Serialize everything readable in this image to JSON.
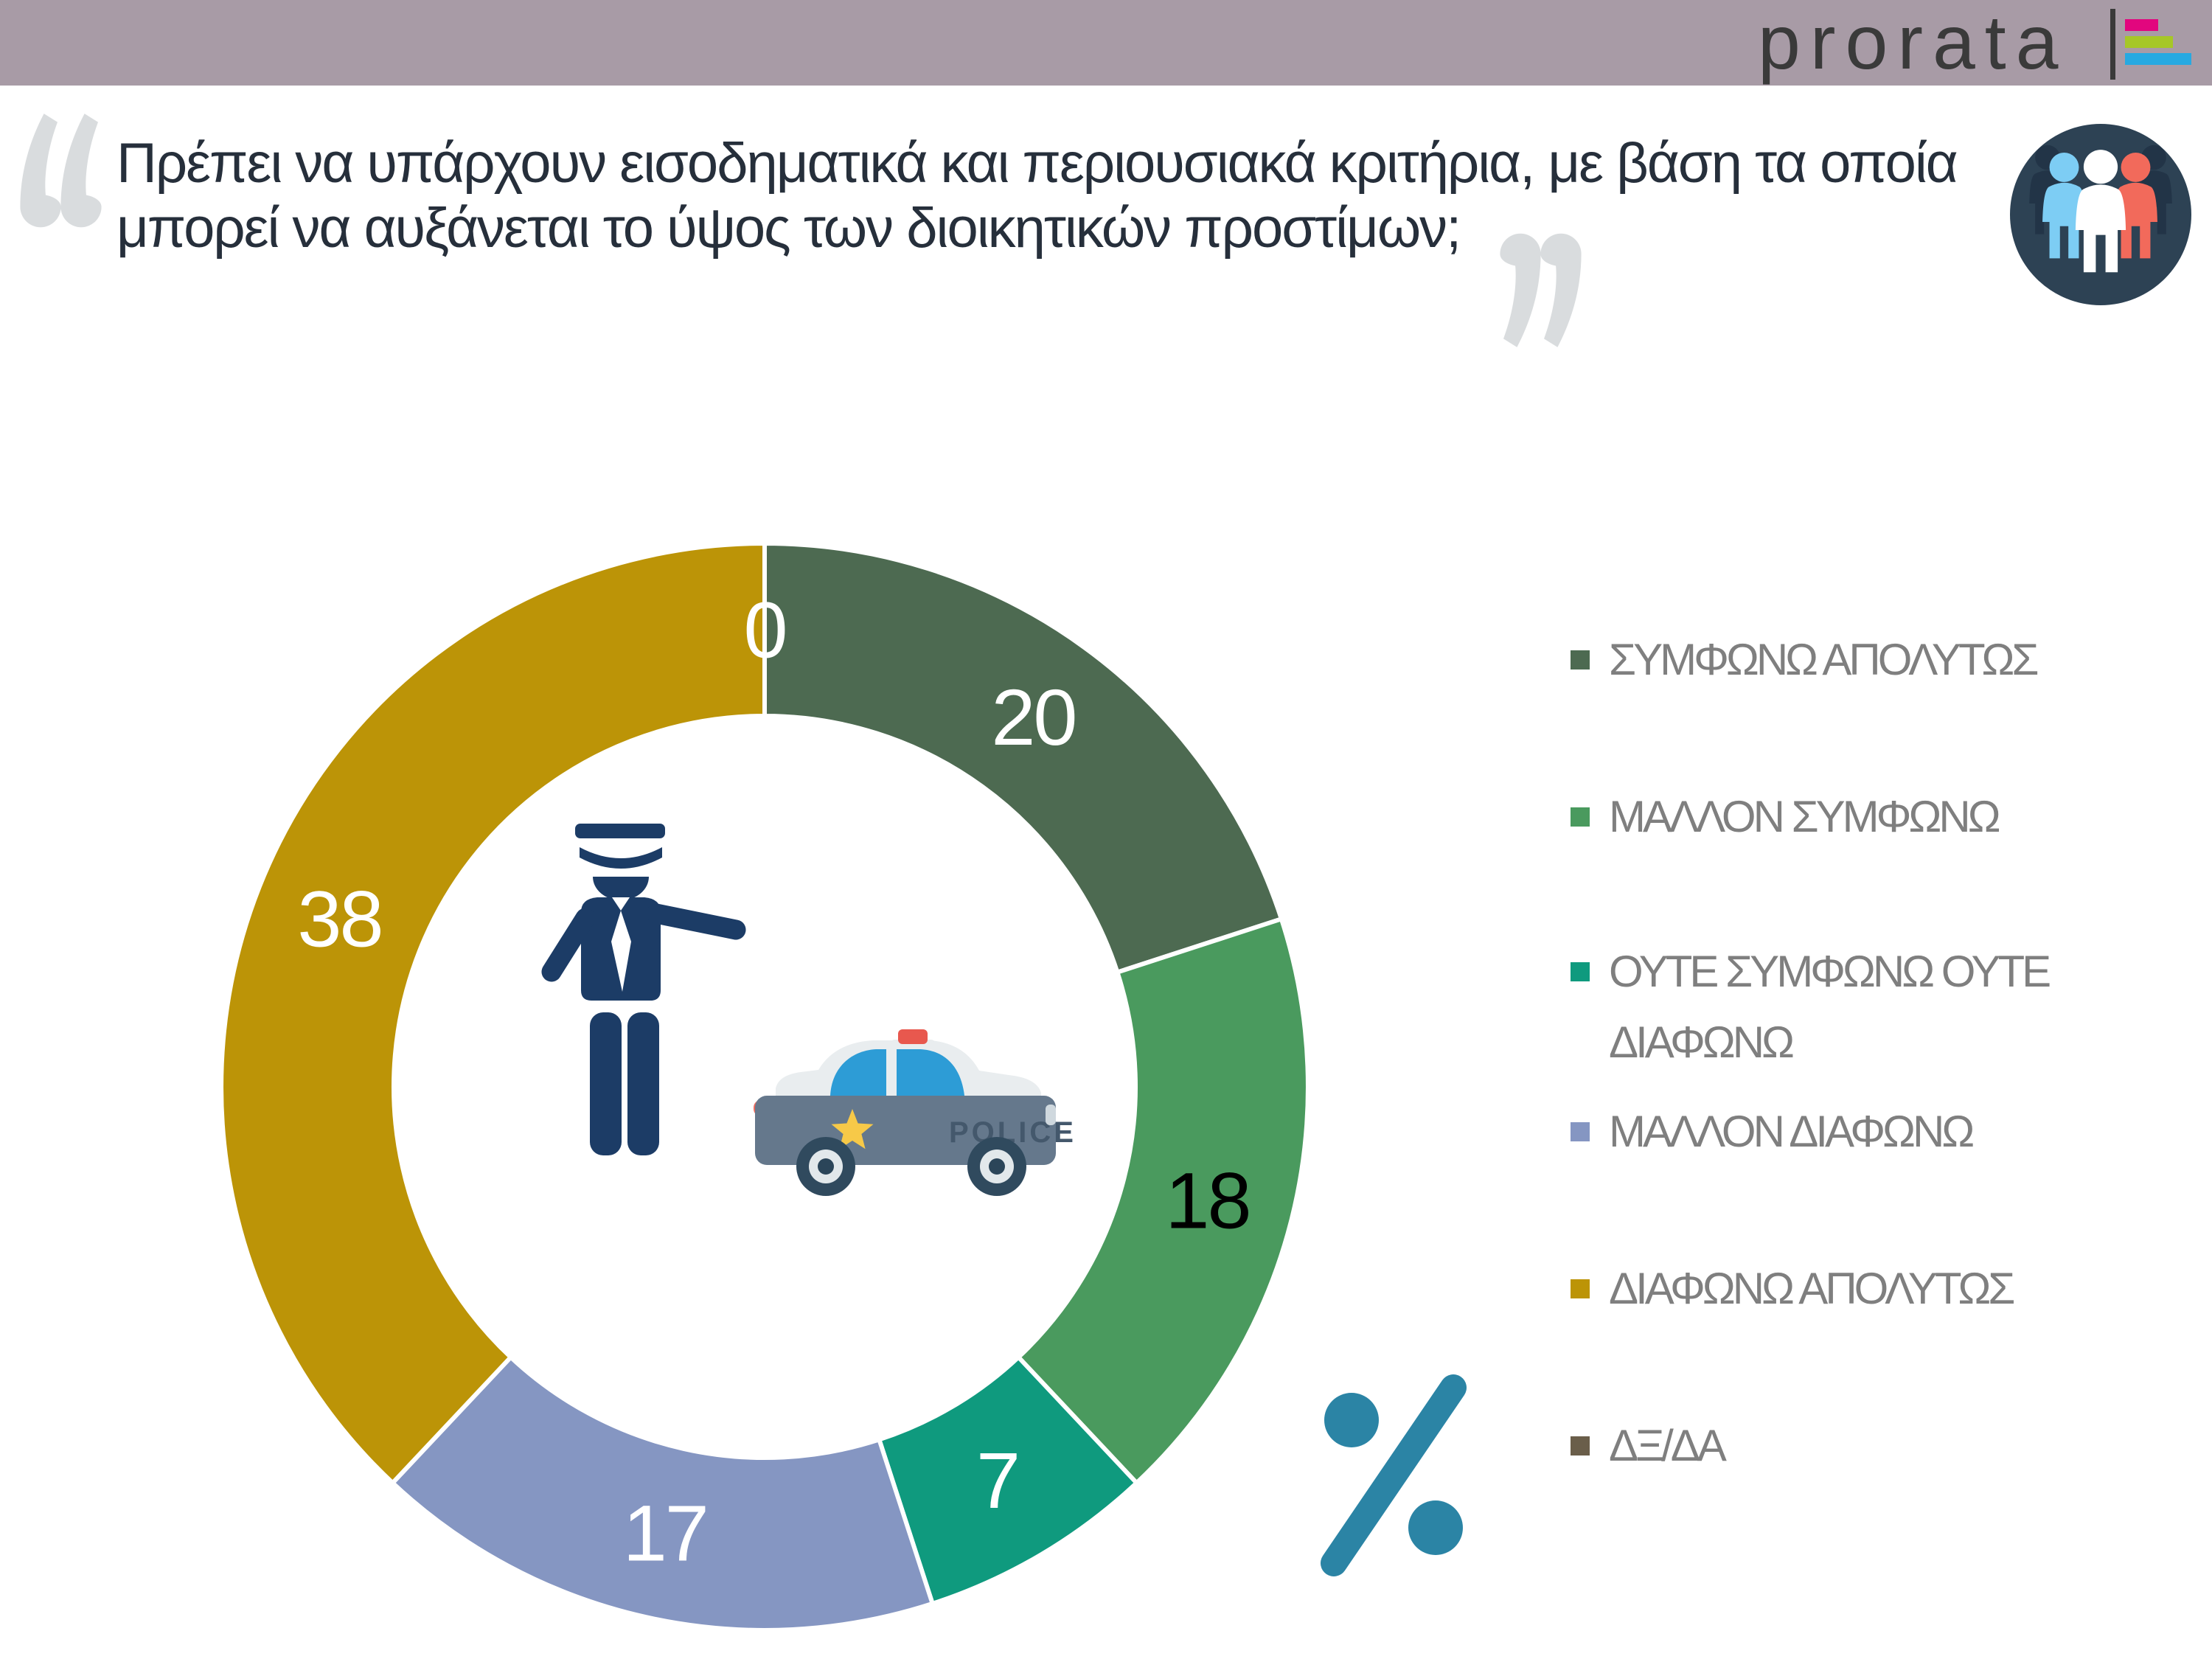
{
  "header": {
    "logo_text": "prorata",
    "logo_bar_colors": [
      "#e2067e",
      "#a6c727",
      "#27a9e1"
    ],
    "bar_color": "#a89ba6"
  },
  "question": {
    "open_quote": "“",
    "line1": "Πρέπει να υπάρχουν εισοδηματικά και περιουσιακά κριτήρια, με βάση τα οποία",
    "line2": "μπορεί να αυξάνεται το ύψος των διοικητικών προστίμων;",
    "close_quote": "”"
  },
  "chart_data": {
    "type": "pie",
    "donut": true,
    "unit": "%",
    "start_angle_deg": 0,
    "direction": "clockwise",
    "legend_position": "right",
    "categories": [
      "ΣΥΜΦΩΝΩ ΑΠΟΛΥΤΩΣ",
      "ΜΑΛΛΟΝ ΣΥΜΦΩΝΩ",
      "ΟΥΤΕ ΣΥΜΦΩΝΩ ΟΥΤΕ ΔΙΑΦΩΝΩ",
      "ΜΑΛΛΟΝ ΔΙΑΦΩΝΩ",
      "ΔΙΑΦΩΝΩ ΑΠΟΛΥΤΩΣ",
      "ΔΞ/ΔΑ"
    ],
    "values": [
      20,
      18,
      7,
      17,
      38,
      0
    ],
    "colors": [
      "#4d6a51",
      "#4a9a5e",
      "#0f9a7e",
      "#8596c2",
      "#bc9407",
      "#6a5e4a"
    ],
    "value_label_colors": [
      "#ffffff",
      "#000000",
      "#ffffff",
      "#ffffff",
      "#ffffff",
      "#ffffff"
    ]
  },
  "legend": {
    "items": [
      {
        "lines": [
          "ΣΥΜΦΩΝΩ ΑΠΟΛΥΤΩΣ"
        ]
      },
      {
        "lines": [
          "ΜΑΛΛΟΝ ΣΥΜΦΩΝΩ"
        ]
      },
      {
        "lines": [
          "ΟΥΤΕ ΣΥΜΦΩΝΩ ΟΥΤΕ",
          "ΔΙΑΦΩΝΩ"
        ]
      },
      {
        "lines": [
          "ΜΑΛΛΟΝ ΔΙΑΦΩΝΩ"
        ]
      },
      {
        "lines": [
          "ΔΙΑΦΩΝΩ ΑΠΟΛΥΤΩΣ"
        ]
      },
      {
        "lines": [
          "ΔΞ/ΔΑ"
        ]
      }
    ]
  },
  "icons": {
    "car_label": "POLICE",
    "percent_color": "#2b84a5"
  }
}
